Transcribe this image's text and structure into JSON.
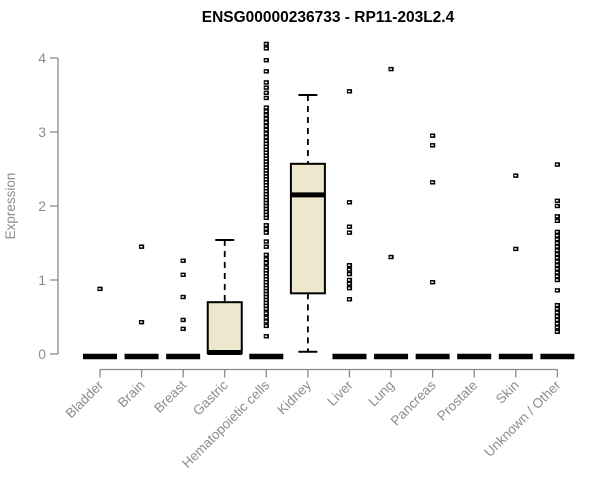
{
  "chart_data": {
    "type": "boxplot",
    "title": "ENSG00000236733 - RP11-203L2.4",
    "xlabel": "",
    "ylabel": "Expression",
    "ylim": [
      0,
      4.3
    ],
    "yticks": [
      0,
      1,
      2,
      3,
      4
    ],
    "grid": false,
    "legend": "none",
    "categories": [
      "Bladder",
      "Brain",
      "Breast",
      "Gastric",
      "Hematopoietic cells",
      "Kidney",
      "Liver",
      "Lung",
      "Pancreas",
      "Prostate",
      "Skin",
      "Unknown / Other"
    ],
    "boxes": [
      {
        "category": "Bladder",
        "q1": 0,
        "median": 0,
        "q3": 0,
        "whisker_low": 0,
        "whisker_high": 0,
        "outliers": [
          0.88
        ]
      },
      {
        "category": "Brain",
        "q1": 0,
        "median": 0,
        "q3": 0,
        "whisker_low": 0,
        "whisker_high": 0,
        "outliers": [
          1.45,
          0.43
        ]
      },
      {
        "category": "Breast",
        "q1": 0,
        "median": 0,
        "q3": 0,
        "whisker_low": 0,
        "whisker_high": 0,
        "outliers": [
          1.26,
          1.07,
          0.77,
          0.46,
          0.34
        ]
      },
      {
        "category": "Gastric",
        "q1": 0.01,
        "median": 0.02,
        "q3": 0.7,
        "whisker_low": 0.01,
        "whisker_high": 1.54,
        "outliers": []
      },
      {
        "category": "Hematopoietic cells",
        "q1": 0,
        "median": 0,
        "q3": 0,
        "whisker_low": 0,
        "whisker_high": 0,
        "outliers": [
          4.19,
          4.13,
          3.97,
          3.82,
          3.67,
          3.6,
          3.53,
          3.46,
          3.33,
          3.28,
          3.23,
          3.18,
          3.13,
          3.08,
          3.03,
          2.98,
          2.93,
          2.88,
          2.84,
          2.8,
          2.76,
          2.72,
          2.68,
          2.64,
          2.6,
          2.56,
          2.52,
          2.48,
          2.44,
          2.4,
          2.36,
          2.32,
          2.28,
          2.24,
          2.2,
          2.16,
          2.12,
          2.08,
          2.04,
          2.0,
          1.96,
          1.92,
          1.88,
          1.84,
          1.74,
          1.69,
          1.64,
          1.52,
          1.45,
          1.34,
          1.28,
          1.23,
          1.17,
          1.13,
          1.09,
          1.05,
          1.01,
          0.97,
          0.93,
          0.89,
          0.85,
          0.81,
          0.77,
          0.73,
          0.69,
          0.65,
          0.61,
          0.55,
          0.49,
          0.44,
          0.38,
          0.24
        ]
      },
      {
        "category": "Kidney",
        "q1": 0.82,
        "median": 2.15,
        "q3": 2.57,
        "whisker_low": 0.03,
        "whisker_high": 3.5,
        "outliers": []
      },
      {
        "category": "Liver",
        "q1": 0,
        "median": 0,
        "q3": 0,
        "whisker_low": 0,
        "whisker_high": 0,
        "outliers": [
          3.55,
          2.05,
          1.72,
          1.64,
          1.2,
          1.14,
          1.08,
          1.0,
          0.95,
          0.89,
          0.74
        ]
      },
      {
        "category": "Lung",
        "q1": 0,
        "median": 0,
        "q3": 0,
        "whisker_low": 0,
        "whisker_high": 0,
        "outliers": [
          3.85,
          1.31
        ]
      },
      {
        "category": "Pancreas",
        "q1": 0,
        "median": 0,
        "q3": 0,
        "whisker_low": 0,
        "whisker_high": 0,
        "outliers": [
          2.95,
          2.82,
          2.32,
          0.97
        ]
      },
      {
        "category": "Prostate",
        "q1": 0,
        "median": 0,
        "q3": 0,
        "whisker_low": 0,
        "whisker_high": 0,
        "outliers": []
      },
      {
        "category": "Skin",
        "q1": 0,
        "median": 0,
        "q3": 0,
        "whisker_low": 0,
        "whisker_high": 0,
        "outliers": [
          2.41,
          1.42
        ]
      },
      {
        "category": "Unknown / Other",
        "q1": 0,
        "median": 0,
        "q3": 0,
        "whisker_low": 0,
        "whisker_high": 0,
        "outliers": [
          2.56,
          2.07,
          2.0,
          1.86,
          1.8,
          1.65,
          1.6,
          1.55,
          1.5,
          1.45,
          1.4,
          1.35,
          1.3,
          1.25,
          1.2,
          1.15,
          1.1,
          1.05,
          1.0,
          0.86,
          0.66,
          0.61,
          0.56,
          0.51,
          0.46,
          0.41,
          0.36,
          0.3
        ]
      }
    ],
    "colors": {
      "background": "#ffffff",
      "box_fill": "#ede8cd",
      "box_stroke": "#000000",
      "median": "#000000",
      "whisker": "#000000",
      "outlier": "#000000",
      "axis": "#8a8a8a",
      "tick_label": "#8c8c8c",
      "title": "#000000"
    }
  }
}
